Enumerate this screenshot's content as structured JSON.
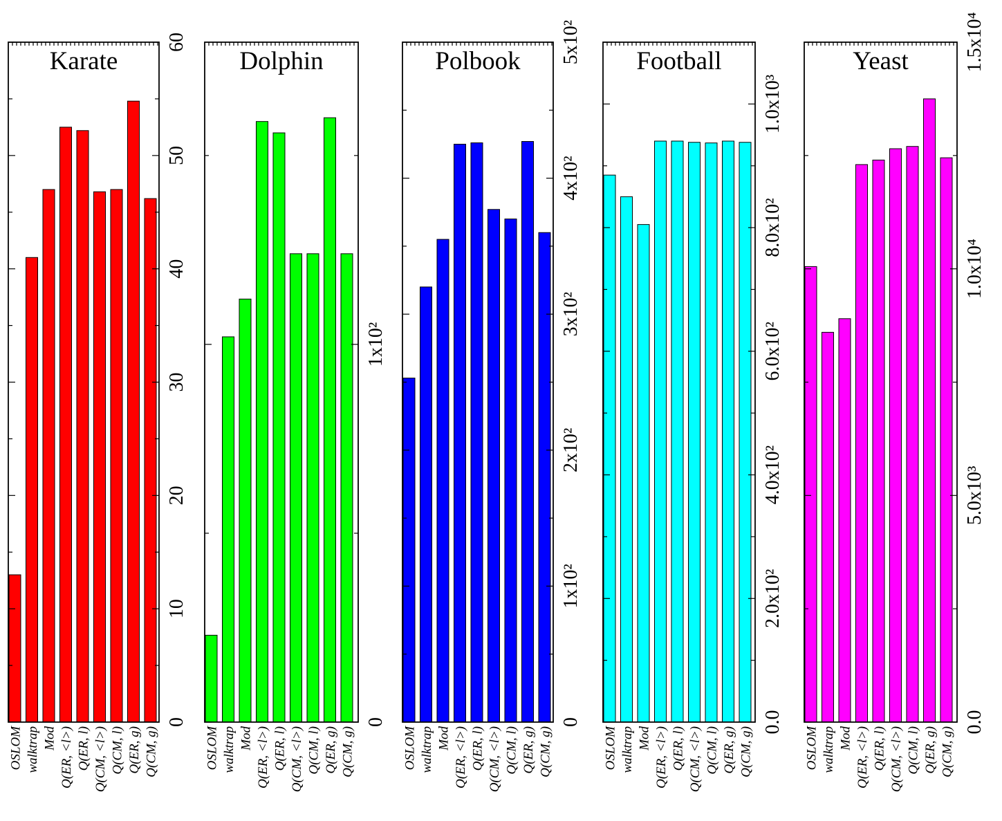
{
  "chart_data": [
    {
      "type": "bar",
      "title": "Karate",
      "color": "#ff0000",
      "categories": [
        "OSLOM",
        "walktrap",
        "Mod",
        "Q(ER, <l>)",
        "Q(ER, l)",
        "Q(CM, <l>)",
        "Q(CM, l)",
        "Q(ER, g)",
        "Q(CM, g)"
      ],
      "values": [
        13.0,
        41.0,
        47.0,
        52.5,
        52.2,
        46.8,
        47.0,
        54.8,
        46.2
      ],
      "ylim": [
        0,
        60
      ],
      "yticks": [
        0,
        10,
        20,
        30,
        40,
        50,
        60
      ],
      "ytick_labels": [
        "0",
        "10",
        "20",
        "30",
        "40",
        "50",
        "60"
      ],
      "grid": false
    },
    {
      "type": "bar",
      "title": "Dolphin",
      "color": "#00ff00",
      "categories": [
        "OSLOM",
        "walktrap",
        "Mod",
        "Q(ER, <l>)",
        "Q(ER, l)",
        "Q(CM, <l>)",
        "Q(CM, l)",
        "Q(ER, g)",
        "Q(CM, g)"
      ],
      "values": [
        23,
        102,
        112,
        159,
        156,
        124,
        124,
        160,
        124
      ],
      "ylim": [
        0,
        180
      ],
      "yticks": [
        0,
        100
      ],
      "ytick_labels": [
        "0",
        "1x10²"
      ],
      "grid": false
    },
    {
      "type": "bar",
      "title": "Polbook",
      "color": "#0000ff",
      "categories": [
        "OSLOM",
        "walktrap",
        "Mod",
        "Q(ER, <l>)",
        "Q(ER, l)",
        "Q(CM, <l>)",
        "Q(CM, l)",
        "Q(ER, g)",
        "Q(CM, g)"
      ],
      "values": [
        253,
        320,
        355,
        425,
        426,
        377,
        370,
        427,
        360
      ],
      "ylim": [
        0,
        500
      ],
      "yticks": [
        0,
        100,
        200,
        300,
        400,
        500
      ],
      "ytick_labels": [
        "0",
        "1x10²",
        "2x10²",
        "3x10²",
        "4x10²",
        "5x10²"
      ],
      "grid": false
    },
    {
      "type": "bar",
      "title": "Football",
      "color": "#00ffff",
      "categories": [
        "OSLOM",
        "walktrap",
        "Mod",
        "Q(ER, <l>)",
        "Q(ER, l)",
        "Q(CM, <l>)",
        "Q(CM, l)",
        "Q(ER, g)",
        "Q(CM, g)"
      ],
      "values": [
        885,
        850,
        805,
        940,
        940,
        938,
        937,
        940,
        938
      ],
      "ylim": [
        0,
        1100
      ],
      "yticks": [
        0,
        200,
        400,
        600,
        800,
        1000
      ],
      "ytick_labels": [
        "0.0",
        "2.0x10²",
        "4.0x10²",
        "6.0x10²",
        "8.0x10²",
        "1.0x10³"
      ],
      "grid": false
    },
    {
      "type": "bar",
      "title": "Yeast",
      "color": "#ff00ff",
      "categories": [
        "OSLOM",
        "walktrap",
        "Mod",
        "Q(ER, <l>)",
        "Q(ER, l)",
        "Q(CM, <l>)",
        "Q(CM, l)",
        "Q(ER, g)",
        "Q(CM, g)"
      ],
      "values": [
        10050,
        8600,
        8900,
        12300,
        12400,
        12650,
        12700,
        13750,
        12450
      ],
      "ylim": [
        0,
        15000
      ],
      "yticks": [
        0,
        5000,
        10000,
        15000
      ],
      "ytick_labels": [
        "0.0",
        "5.0x10³",
        "1.0x10⁴",
        "1.5x10⁴"
      ],
      "grid": false
    }
  ]
}
